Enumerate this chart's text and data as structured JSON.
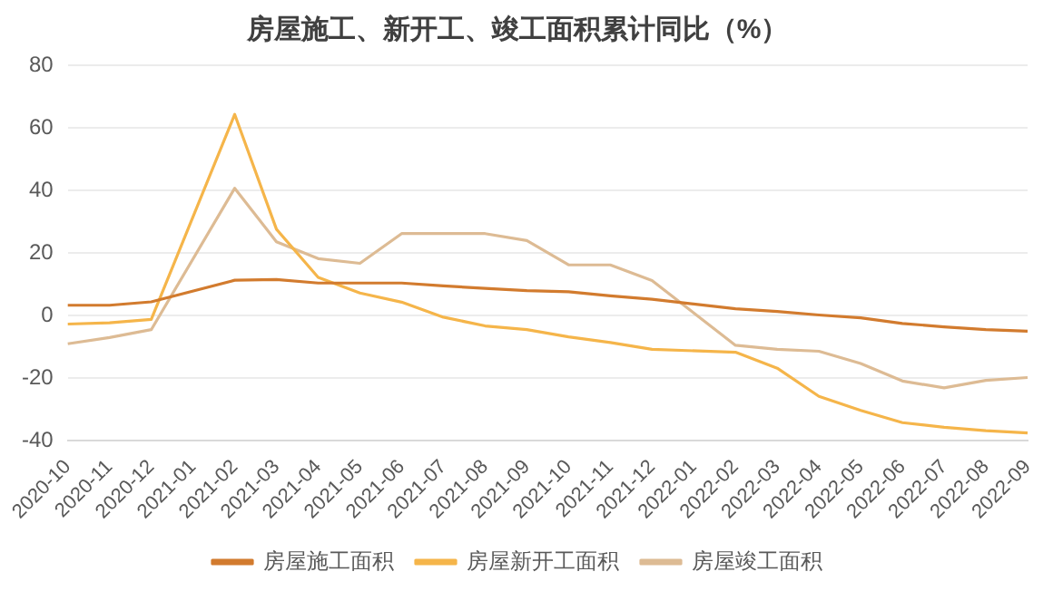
{
  "chart_data": {
    "type": "line",
    "title": "房屋施工、新开工、竣工面积累计同比（%）",
    "categories": [
      "2020-10",
      "2020-11",
      "2020-12",
      "2021-01",
      "2021-02",
      "2021-03",
      "2021-04",
      "2021-05",
      "2021-06",
      "2021-07",
      "2021-08",
      "2021-09",
      "2021-10",
      "2021-11",
      "2021-12",
      "2022-01",
      "2022-02",
      "2022-03",
      "2022-04",
      "2022-05",
      "2022-06",
      "2022-07",
      "2022-08",
      "2022-09"
    ],
    "series": [
      {
        "name": "房屋施工面积",
        "color": "#d27b2e",
        "values": [
          3.3,
          3.3,
          4.4,
          null,
          11.3,
          11.5,
          10.4,
          10.4,
          10.4,
          9.5,
          8.7,
          8,
          7.6,
          6.3,
          5.2,
          null,
          2.2,
          1.3,
          0.2,
          -0.7,
          -2.5,
          -3.6,
          -4.5,
          -5
        ]
      },
      {
        "name": "房屋新开工面积",
        "color": "#f5b54a",
        "values": [
          -2.7,
          -2.3,
          -1.2,
          null,
          64.3,
          27.6,
          12.2,
          7.2,
          4.3,
          -0.5,
          -3.3,
          -4.5,
          -6.8,
          -8.6,
          -10.8,
          null,
          -11.7,
          -16.8,
          -25.8,
          -30.3,
          -34.2,
          -35.7,
          -36.8,
          -37.5
        ]
      },
      {
        "name": "房屋竣工面积",
        "color": "#ddbb94",
        "values": [
          -9,
          -7,
          -4.5,
          null,
          40.7,
          23.6,
          18.2,
          16.7,
          26.2,
          26.2,
          26.2,
          24,
          16.2,
          16.2,
          11.2,
          null,
          -9.5,
          -10.8,
          -11.4,
          -15.3,
          -20.9,
          -23.1,
          -20.7,
          -19.8
        ]
      }
    ],
    "ylim": [
      -40,
      80
    ],
    "yticks": [
      -40,
      -20,
      0,
      20,
      40,
      60,
      80
    ],
    "grid": "y",
    "legend": "bottom",
    "marker": "none",
    "line_style": "solid"
  }
}
